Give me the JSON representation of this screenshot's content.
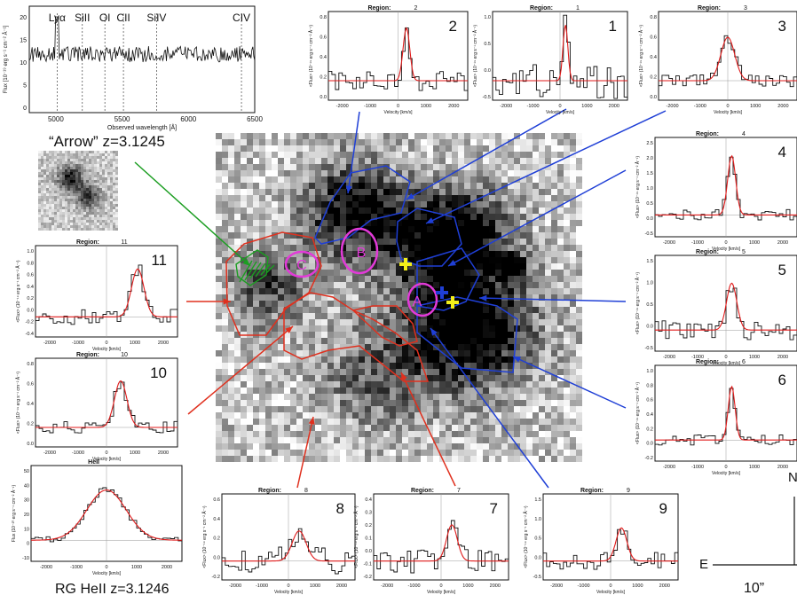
{
  "spectrum": {
    "lines": [
      {
        "label": "Lyα",
        "wl": 5010
      },
      {
        "label": "SiII",
        "wl": 5200
      },
      {
        "label": "OI",
        "wl": 5370
      },
      {
        "label": "CII",
        "wl": 5510
      },
      {
        "label": "SiIV",
        "wl": 5760
      },
      {
        "label": "CIV",
        "wl": 6400
      }
    ],
    "xlabel": "Observed wavelength [Å]",
    "ylabel": "Flux [10⁻¹⁹ erg s⁻¹ cm⁻² Å⁻¹]",
    "xticks": [
      "5000",
      "5500",
      "6000",
      "6500"
    ],
    "yticks": [
      "20",
      "15",
      "10",
      "5",
      "0"
    ]
  },
  "arrow_caption": "“Arrow” z=3.1245",
  "rg_caption": "RG HeII z=3.1246",
  "compass": {
    "east": "E",
    "north": "N",
    "scale": "10”"
  },
  "markers": {
    "A": "A",
    "B": "B",
    "C": "C"
  },
  "panels": [
    {
      "id": "2",
      "title": "Region:",
      "num": "2",
      "ylabel": "<Flux> (10⁻¹⁹ erg s⁻¹ cm⁻² Å⁻¹)",
      "xlabel": "Velocity [km/s]",
      "xticks": [
        "-2000",
        "-1000",
        "0",
        "1000",
        "2000"
      ],
      "yticks": [
        "0.8",
        "0.6",
        "0.4",
        "0.2",
        "0.0"
      ]
    },
    {
      "id": "1",
      "title": "Region:",
      "num": "1",
      "ylabel": "<Flux> (10⁻¹⁹ erg s⁻¹ cm⁻² Å⁻¹)",
      "xlabel": "Velocity [km/s]",
      "xticks": [
        "-2000",
        "-1000",
        "0",
        "1000",
        "2000"
      ],
      "yticks": [
        "1.0",
        "0.5",
        "0.0",
        "-0.5"
      ]
    },
    {
      "id": "3",
      "title": "Region:",
      "num": "3",
      "ylabel": "<Flux> (10⁻¹⁹ erg s⁻¹ cm⁻² Å⁻¹)",
      "xlabel": "Velocity [km/s]",
      "xticks": [
        "-2000",
        "-1000",
        "0",
        "1000",
        "2000"
      ],
      "yticks": [
        "0.8",
        "0.6",
        "0.4",
        "0.2",
        "0.0"
      ]
    },
    {
      "id": "4",
      "title": "Region:",
      "num": "4",
      "ylabel": "<Flux> (10⁻¹⁹ erg s⁻¹ cm⁻² Å⁻¹)",
      "xlabel": "Velocity [km/s]",
      "xticks": [
        "-2000",
        "-1000",
        "0",
        "1000",
        "2000"
      ],
      "yticks": [
        "2.5",
        "2.0",
        "1.5",
        "1.0",
        "0.5",
        "0.0",
        "-0.5"
      ]
    },
    {
      "id": "5",
      "title": "Region:",
      "num": "5",
      "ylabel": "<Flux> (10⁻¹⁹ erg s⁻¹ cm⁻² Å⁻¹)",
      "xlabel": "Velocity [km/s]",
      "xticks": [
        "-2000",
        "-1000",
        "0",
        "1000",
        "2000"
      ],
      "yticks": [
        "1.5",
        "1.0",
        "0.5",
        "0.0",
        "-0.5"
      ]
    },
    {
      "id": "6",
      "title": "Region:",
      "num": "6",
      "ylabel": "<Flux> (10⁻¹⁹ erg s⁻¹ cm⁻² Å⁻¹)",
      "xlabel": "Velocity [km/s]",
      "xticks": [
        "-2000",
        "-1000",
        "0",
        "1000",
        "2000"
      ],
      "yticks": [
        "1.0",
        "0.8",
        "0.6",
        "0.4",
        "0.2",
        "0.0",
        "-0.2"
      ]
    },
    {
      "id": "11",
      "title": "Region:",
      "num": "11",
      "ylabel": "<Flux> (10⁻¹⁹ erg s⁻¹ cm⁻² Å⁻¹)",
      "xlabel": "Velocity [km/s]",
      "xticks": [
        "-2000",
        "-1000",
        "0",
        "1000",
        "2000"
      ],
      "yticks": [
        "1.0",
        "0.8",
        "0.6",
        "0.4",
        "0.2",
        "0.0",
        "-0.2",
        "-0.4"
      ]
    },
    {
      "id": "10",
      "title": "Region:",
      "num": "10",
      "ylabel": "<Flux> (10⁻¹⁹ erg s⁻¹ cm⁻² Å⁻¹)",
      "xlabel": "Velocity [km/s]",
      "xticks": [
        "-2000",
        "-1000",
        "0",
        "1000",
        "2000"
      ],
      "yticks": [
        "0.8",
        "0.6",
        "0.4",
        "0.2",
        "0.0"
      ]
    },
    {
      "id": "heii",
      "title": "HeII",
      "num": "",
      "ylabel": "Flux (10⁻²⁰ erg s⁻¹ cm⁻² Å⁻¹)",
      "xlabel": "Velocity [km/s]",
      "xticks": [
        "-2000",
        "-1000",
        "0",
        "1000",
        "2000"
      ],
      "yticks": [
        "50",
        "40",
        "30",
        "20",
        "10",
        "0",
        "-10"
      ]
    },
    {
      "id": "8",
      "title": "Region:",
      "num": "8",
      "ylabel": "<Flux> (10⁻¹⁹ erg s⁻¹ cm⁻² Å⁻¹)",
      "xlabel": "Velocity [km/s]",
      "xticks": [
        "-2000",
        "-1000",
        "0",
        "1000",
        "2000"
      ],
      "yticks": [
        "0.6",
        "0.4",
        "0.2",
        "0.0",
        "-0.2"
      ]
    },
    {
      "id": "7",
      "title": "Region:",
      "num": "7",
      "ylabel": "<Flux> (10⁻¹⁹ erg s⁻¹ cm⁻² Å⁻¹)",
      "xlabel": "Velocity [km/s]",
      "xticks": [
        "-2000",
        "-1000",
        "0",
        "1000",
        "2000"
      ],
      "yticks": [
        "0.4",
        "0.3",
        "0.2",
        "0.1",
        "0.0",
        "-0.1",
        "-0.2"
      ]
    },
    {
      "id": "9",
      "title": "Region:",
      "num": "9",
      "ylabel": "<Flux> (10⁻¹⁹ erg s⁻¹ cm⁻² Å⁻¹)",
      "xlabel": "Velocity [km/s]",
      "xticks": [
        "-2000",
        "-1000",
        "0",
        "1000",
        "2000"
      ],
      "yticks": [
        "1.5",
        "1.0",
        "0.5",
        "0.0",
        "-0.5"
      ]
    }
  ],
  "colors": {
    "blue": "#1f3fd6",
    "red": "#e0301e",
    "magenta": "#e23ad8",
    "yellow": "#f2ee1a",
    "green": "#1c9e22",
    "fit": "#e01a1a"
  }
}
